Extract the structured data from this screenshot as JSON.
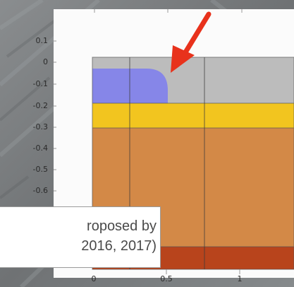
{
  "plot": {
    "y_ticks": [
      "0.1",
      "0",
      "-0.1",
      "-0.2",
      "-0.3",
      "-0.4",
      "-0.5",
      "-0.6"
    ],
    "x_ticks": [
      "0",
      "0.5",
      "1"
    ]
  },
  "layers": [
    {
      "name": "gray-top-layer",
      "color": "#bcbcbc"
    },
    {
      "name": "blue-rounded-region",
      "color": "#8686e8"
    },
    {
      "name": "yellow-layer",
      "color": "#f2c51f"
    },
    {
      "name": "orange-layer",
      "color": "#d38947"
    },
    {
      "name": "red-bottom-layer",
      "color": "#b8441c"
    }
  ],
  "annotation": {
    "arrow_color": "#e8321c",
    "arrow_icon": "red-arrow-icon"
  },
  "caption": {
    "line1": "roposed by",
    "line2": "2016, 2017)"
  }
}
